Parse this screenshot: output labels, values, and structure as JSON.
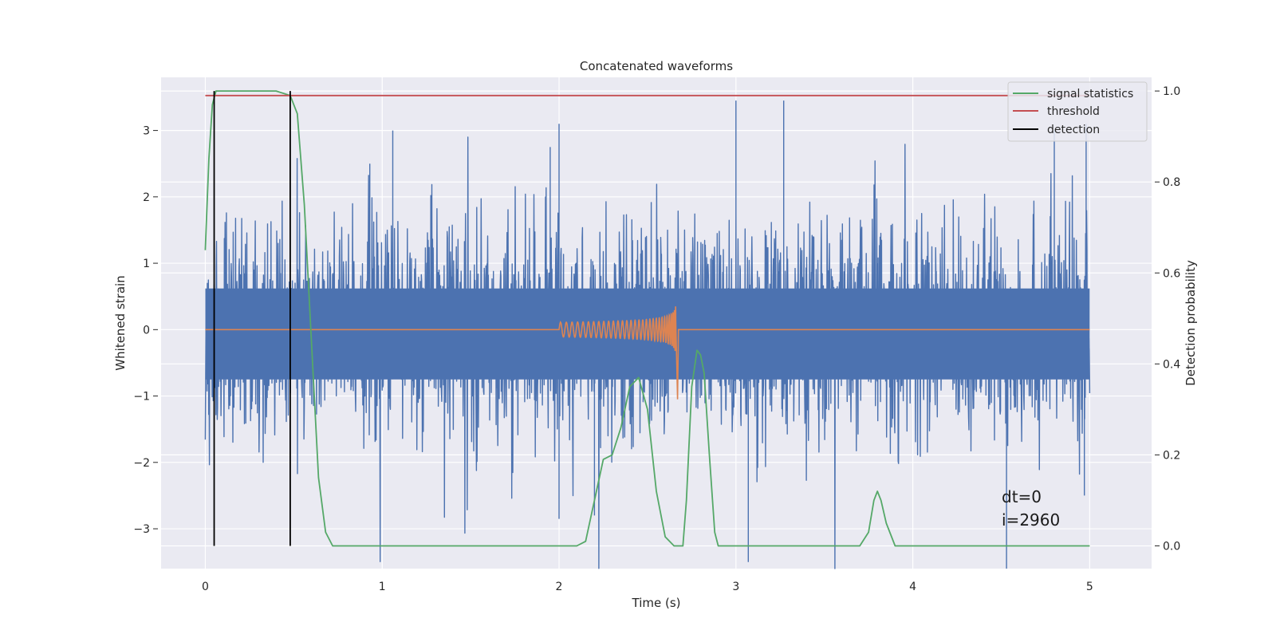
{
  "chart_data": {
    "type": "line",
    "title": "Concatenated waveforms",
    "xlabel": "Time (s)",
    "ylabel": "Whitened strain",
    "ylabel_right": "Detection probability",
    "xlim": [
      -0.25,
      5.35
    ],
    "ylim": [
      -3.6,
      3.8
    ],
    "ylim_right": [
      -0.05,
      1.03
    ],
    "xticks": [
      0,
      1,
      2,
      3,
      4,
      5
    ],
    "yticks": [
      -3,
      -2,
      -1,
      0,
      1,
      2,
      3
    ],
    "yticks_right": [
      0.0,
      0.2,
      0.4,
      0.6,
      0.8,
      1.0
    ],
    "xtick_labels": [
      "0",
      "1",
      "2",
      "3",
      "4",
      "5"
    ],
    "ytick_labels": [
      "−3",
      "−2",
      "−1",
      "0",
      "1",
      "2",
      "3"
    ],
    "ytick_labels_right": [
      "0.0",
      "0.2",
      "0.4",
      "0.6",
      "0.8",
      "1.0"
    ],
    "grid": true,
    "legend_position": "top-right",
    "series": [
      {
        "name": "",
        "role": "whitened strain noise",
        "color": "#4c72b0",
        "axis": "left",
        "x_range": [
          0,
          5
        ],
        "envelope_typical": 1.7,
        "notable_peaks": [
          {
            "x": 0.93,
            "y": 2.5
          },
          {
            "x": 1.06,
            "y": 3.0
          },
          {
            "x": 1.95,
            "y": 2.75
          },
          {
            "x": 2.0,
            "y": 3.1
          },
          {
            "x": 3.0,
            "y": 3.45
          },
          {
            "x": 3.27,
            "y": 3.45
          },
          {
            "x": 4.8,
            "y": 3.0
          },
          {
            "x": 4.98,
            "y": 3.1
          }
        ],
        "notable_troughs": [
          {
            "x": 2.0,
            "y": -2.85
          },
          {
            "x": 2.2,
            "y": -2.8
          },
          {
            "x": 3.07,
            "y": -3.5
          },
          {
            "x": 4.53,
            "y": -3.6
          },
          {
            "x": 4.97,
            "y": -2.5
          }
        ]
      },
      {
        "name": "",
        "role": "injected chirp waveform",
        "color": "#dd8452",
        "axis": "left",
        "x_range": [
          0,
          5
        ],
        "chirp_start": 2.0,
        "chirp_end": 2.66,
        "chirp_peak_amplitude": 1.05
      },
      {
        "name": "signal statistics",
        "color": "#55a868",
        "axis": "right",
        "x": [
          0.0,
          0.02,
          0.04,
          0.06,
          0.08,
          0.1,
          0.2,
          0.3,
          0.4,
          0.48,
          0.52,
          0.56,
          0.6,
          0.64,
          0.68,
          0.72,
          1.0,
          1.5,
          2.0,
          2.1,
          2.15,
          2.2,
          2.25,
          2.3,
          2.35,
          2.4,
          2.45,
          2.5,
          2.55,
          2.6,
          2.65,
          2.7,
          2.72,
          2.75,
          2.78,
          2.8,
          2.82,
          2.85,
          2.88,
          2.9,
          3.0,
          3.5,
          3.7,
          3.75,
          3.78,
          3.8,
          3.82,
          3.85,
          3.9,
          4.0,
          4.5,
          5.0
        ],
        "values": [
          0.65,
          0.85,
          0.97,
          1.0,
          1.0,
          1.0,
          1.0,
          1.0,
          1.0,
          0.99,
          0.95,
          0.75,
          0.45,
          0.15,
          0.03,
          0.0,
          0.0,
          0.0,
          0.0,
          0.0,
          0.01,
          0.1,
          0.19,
          0.2,
          0.26,
          0.35,
          0.37,
          0.3,
          0.12,
          0.02,
          0.0,
          0.0,
          0.1,
          0.35,
          0.43,
          0.42,
          0.38,
          0.2,
          0.03,
          0.0,
          0.0,
          0.0,
          0.0,
          0.03,
          0.1,
          0.12,
          0.1,
          0.05,
          0.0,
          0.0,
          0.0,
          0.0
        ]
      },
      {
        "name": "threshold",
        "color": "#c44e52",
        "axis": "right",
        "x": [
          0.0,
          5.0
        ],
        "values": [
          0.99,
          0.99
        ]
      },
      {
        "name": "detection",
        "color": "#000000",
        "axis": "right",
        "x": [
          0.05,
          0.48
        ],
        "y_range": [
          0.0,
          1.0
        ]
      }
    ],
    "annotations": [
      "dt=0",
      "i=2960"
    ]
  }
}
